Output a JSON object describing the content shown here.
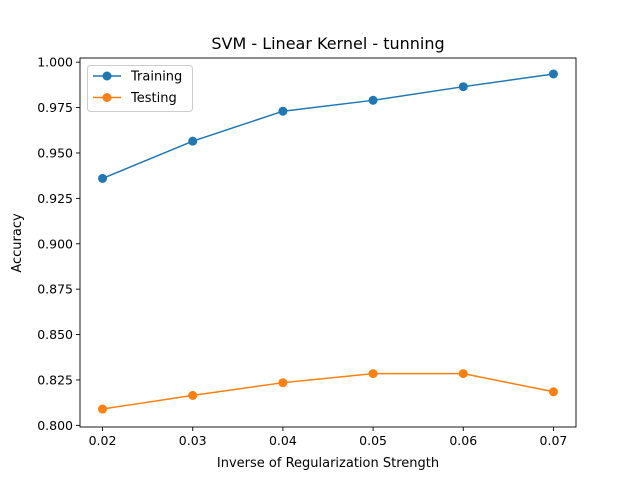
{
  "chart_data": {
    "type": "line",
    "title": "SVM - Linear Kernel - tunning",
    "xlabel": "Inverse of Regularization Strength",
    "ylabel": "Accuracy",
    "x": [
      0.02,
      0.03,
      0.04,
      0.05,
      0.06,
      0.07
    ],
    "x_tick_labels": [
      "0.02",
      "0.03",
      "0.04",
      "0.05",
      "0.06",
      "0.07"
    ],
    "y_ticks": [
      0.8,
      0.825,
      0.85,
      0.875,
      0.9,
      0.925,
      0.95,
      0.975,
      1.0
    ],
    "y_tick_labels": [
      "0.800",
      "0.825",
      "0.850",
      "0.875",
      "0.900",
      "0.925",
      "0.950",
      "0.975",
      "1.000"
    ],
    "xlim": [
      0.0175,
      0.0725
    ],
    "ylim": [
      0.7991,
      1.0023
    ],
    "grid": false,
    "legend_position": "top-left",
    "series": [
      {
        "name": "Training",
        "color": "#1f77b4",
        "marker": "circle",
        "values": [
          0.936,
          0.9565,
          0.973,
          0.979,
          0.9865,
          0.9935
        ]
      },
      {
        "name": "Testing",
        "color": "#ff7f0e",
        "marker": "circle",
        "values": [
          0.809,
          0.8165,
          0.8235,
          0.8285,
          0.8285,
          0.8185
        ]
      }
    ]
  }
}
